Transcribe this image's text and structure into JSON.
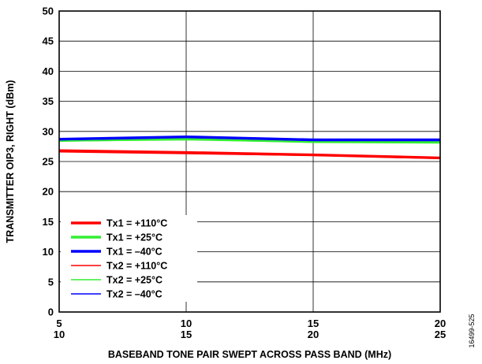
{
  "chart_data": {
    "type": "line",
    "title": "",
    "xlabel": "BASEBAND TONE PAIR SWEPT ACROSS PASS BAND (MHz)",
    "ylabel": "TRANSMITTER OIP3, RIGHT (dBm)",
    "xlim": [
      5,
      20
    ],
    "ylim": [
      0,
      50
    ],
    "x_ticks": [
      5,
      10,
      15,
      20
    ],
    "x_tick_labels": [
      [
        "5",
        "10"
      ],
      [
        "10",
        "15"
      ],
      [
        "15",
        "20"
      ],
      [
        "20",
        "25"
      ]
    ],
    "y_ticks": [
      0,
      5,
      10,
      15,
      20,
      25,
      30,
      35,
      40,
      45,
      50
    ],
    "x_grid": true,
    "y_grid": true,
    "legend_position": "bottom-left",
    "figure_code": "16499-525",
    "series": [
      {
        "name": "Tx1 = +110°C",
        "color": "#ff0000",
        "weight": "thick",
        "x": [
          5,
          10,
          15,
          20
        ],
        "y": [
          26.8,
          26.5,
          26.1,
          25.6
        ]
      },
      {
        "name": "Tx1 = +25°C",
        "color": "#33ee33",
        "weight": "thick",
        "x": [
          5,
          10,
          15,
          20
        ],
        "y": [
          28.5,
          28.8,
          28.3,
          28.2
        ]
      },
      {
        "name": "Tx1 = –40°C",
        "color": "#0000ff",
        "weight": "thick",
        "x": [
          5,
          10,
          15,
          20
        ],
        "y": [
          28.7,
          29.1,
          28.6,
          28.6
        ]
      },
      {
        "name": "Tx2 = +110°C",
        "color": "#ff0000",
        "weight": "thin",
        "x": [
          5,
          10,
          15,
          20
        ],
        "y": [
          26.6,
          26.3,
          26.0,
          25.5
        ]
      },
      {
        "name": "Tx2 = +25°C",
        "color": "#33ee33",
        "weight": "thin",
        "x": [
          5,
          10,
          15,
          20
        ],
        "y": [
          28.4,
          28.6,
          28.2,
          28.1
        ]
      },
      {
        "name": "Tx2 = –40°C",
        "color": "#0000ff",
        "weight": "thin",
        "x": [
          5,
          10,
          15,
          20
        ],
        "y": [
          28.6,
          29.0,
          28.5,
          28.5
        ]
      }
    ]
  }
}
